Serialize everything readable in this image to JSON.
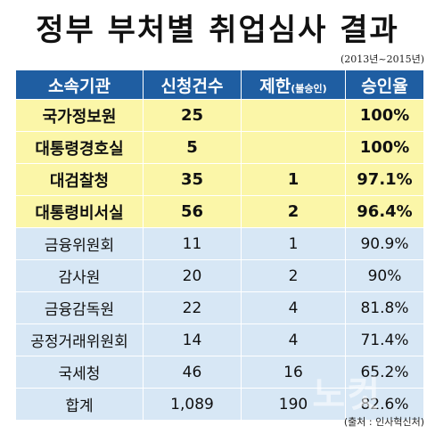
{
  "title": "정부 부처별 취업심사 결과",
  "period": "(2013년~2015년)",
  "header": {
    "col1": "소속기관",
    "col2": "신청건수",
    "col3_main": "제한",
    "col3_sub": "(불승인)",
    "col4": "승인율"
  },
  "rows": [
    {
      "agency": "국가정보원",
      "applications": "25",
      "restricted": "",
      "approval_rate": "100%"
    },
    {
      "agency": "대통령경호실",
      "applications": "5",
      "restricted": "",
      "approval_rate": "100%"
    },
    {
      "agency": "대검찰청",
      "applications": "35",
      "restricted": "1",
      "approval_rate": "97.1%"
    },
    {
      "agency": "대통령비서실",
      "applications": "56",
      "restricted": "2",
      "approval_rate": "96.4%"
    },
    {
      "agency": "금융위원회",
      "applications": "11",
      "restricted": "1",
      "approval_rate": "90.9%"
    },
    {
      "agency": "감사원",
      "applications": "20",
      "restricted": "2",
      "approval_rate": "90%"
    },
    {
      "agency": "금융감독원",
      "applications": "22",
      "restricted": "4",
      "approval_rate": "81.8%"
    },
    {
      "agency": "공정거래위원회",
      "applications": "14",
      "restricted": "4",
      "approval_rate": "71.4%"
    },
    {
      "agency": "국세청",
      "applications": "46",
      "restricted": "16",
      "approval_rate": "65.2%"
    },
    {
      "agency": "합계",
      "applications": "1,089",
      "restricted": "190",
      "approval_rate": "82.6%"
    }
  ],
  "source": "(출처 : 인사혁신처)",
  "watermark": "노컷",
  "colors": {
    "header_bg": "#1f5ea2",
    "highlight_bg": "#fbf6a8",
    "normal_bg": "#d7e7f5"
  }
}
